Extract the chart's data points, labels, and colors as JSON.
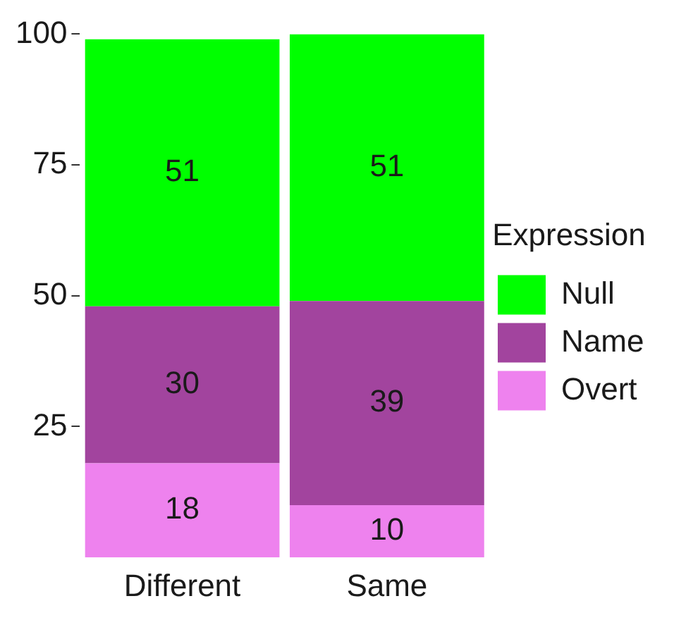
{
  "chart_data": {
    "type": "bar",
    "stacked": true,
    "categories": [
      "Different",
      "Same"
    ],
    "series": [
      {
        "name": "Overt",
        "color": "#ee82ee",
        "values": [
          18,
          10
        ]
      },
      {
        "name": "Name",
        "color": "#a2449e",
        "values": [
          30,
          39
        ]
      },
      {
        "name": "Null",
        "color": "#00ff00",
        "values": [
          51,
          51
        ]
      }
    ],
    "legend_title": "Expression",
    "legend": "right",
    "data_labels": true,
    "grid": false,
    "ylim": [
      0,
      100
    ],
    "yticks": [
      25,
      50,
      75,
      100
    ]
  }
}
